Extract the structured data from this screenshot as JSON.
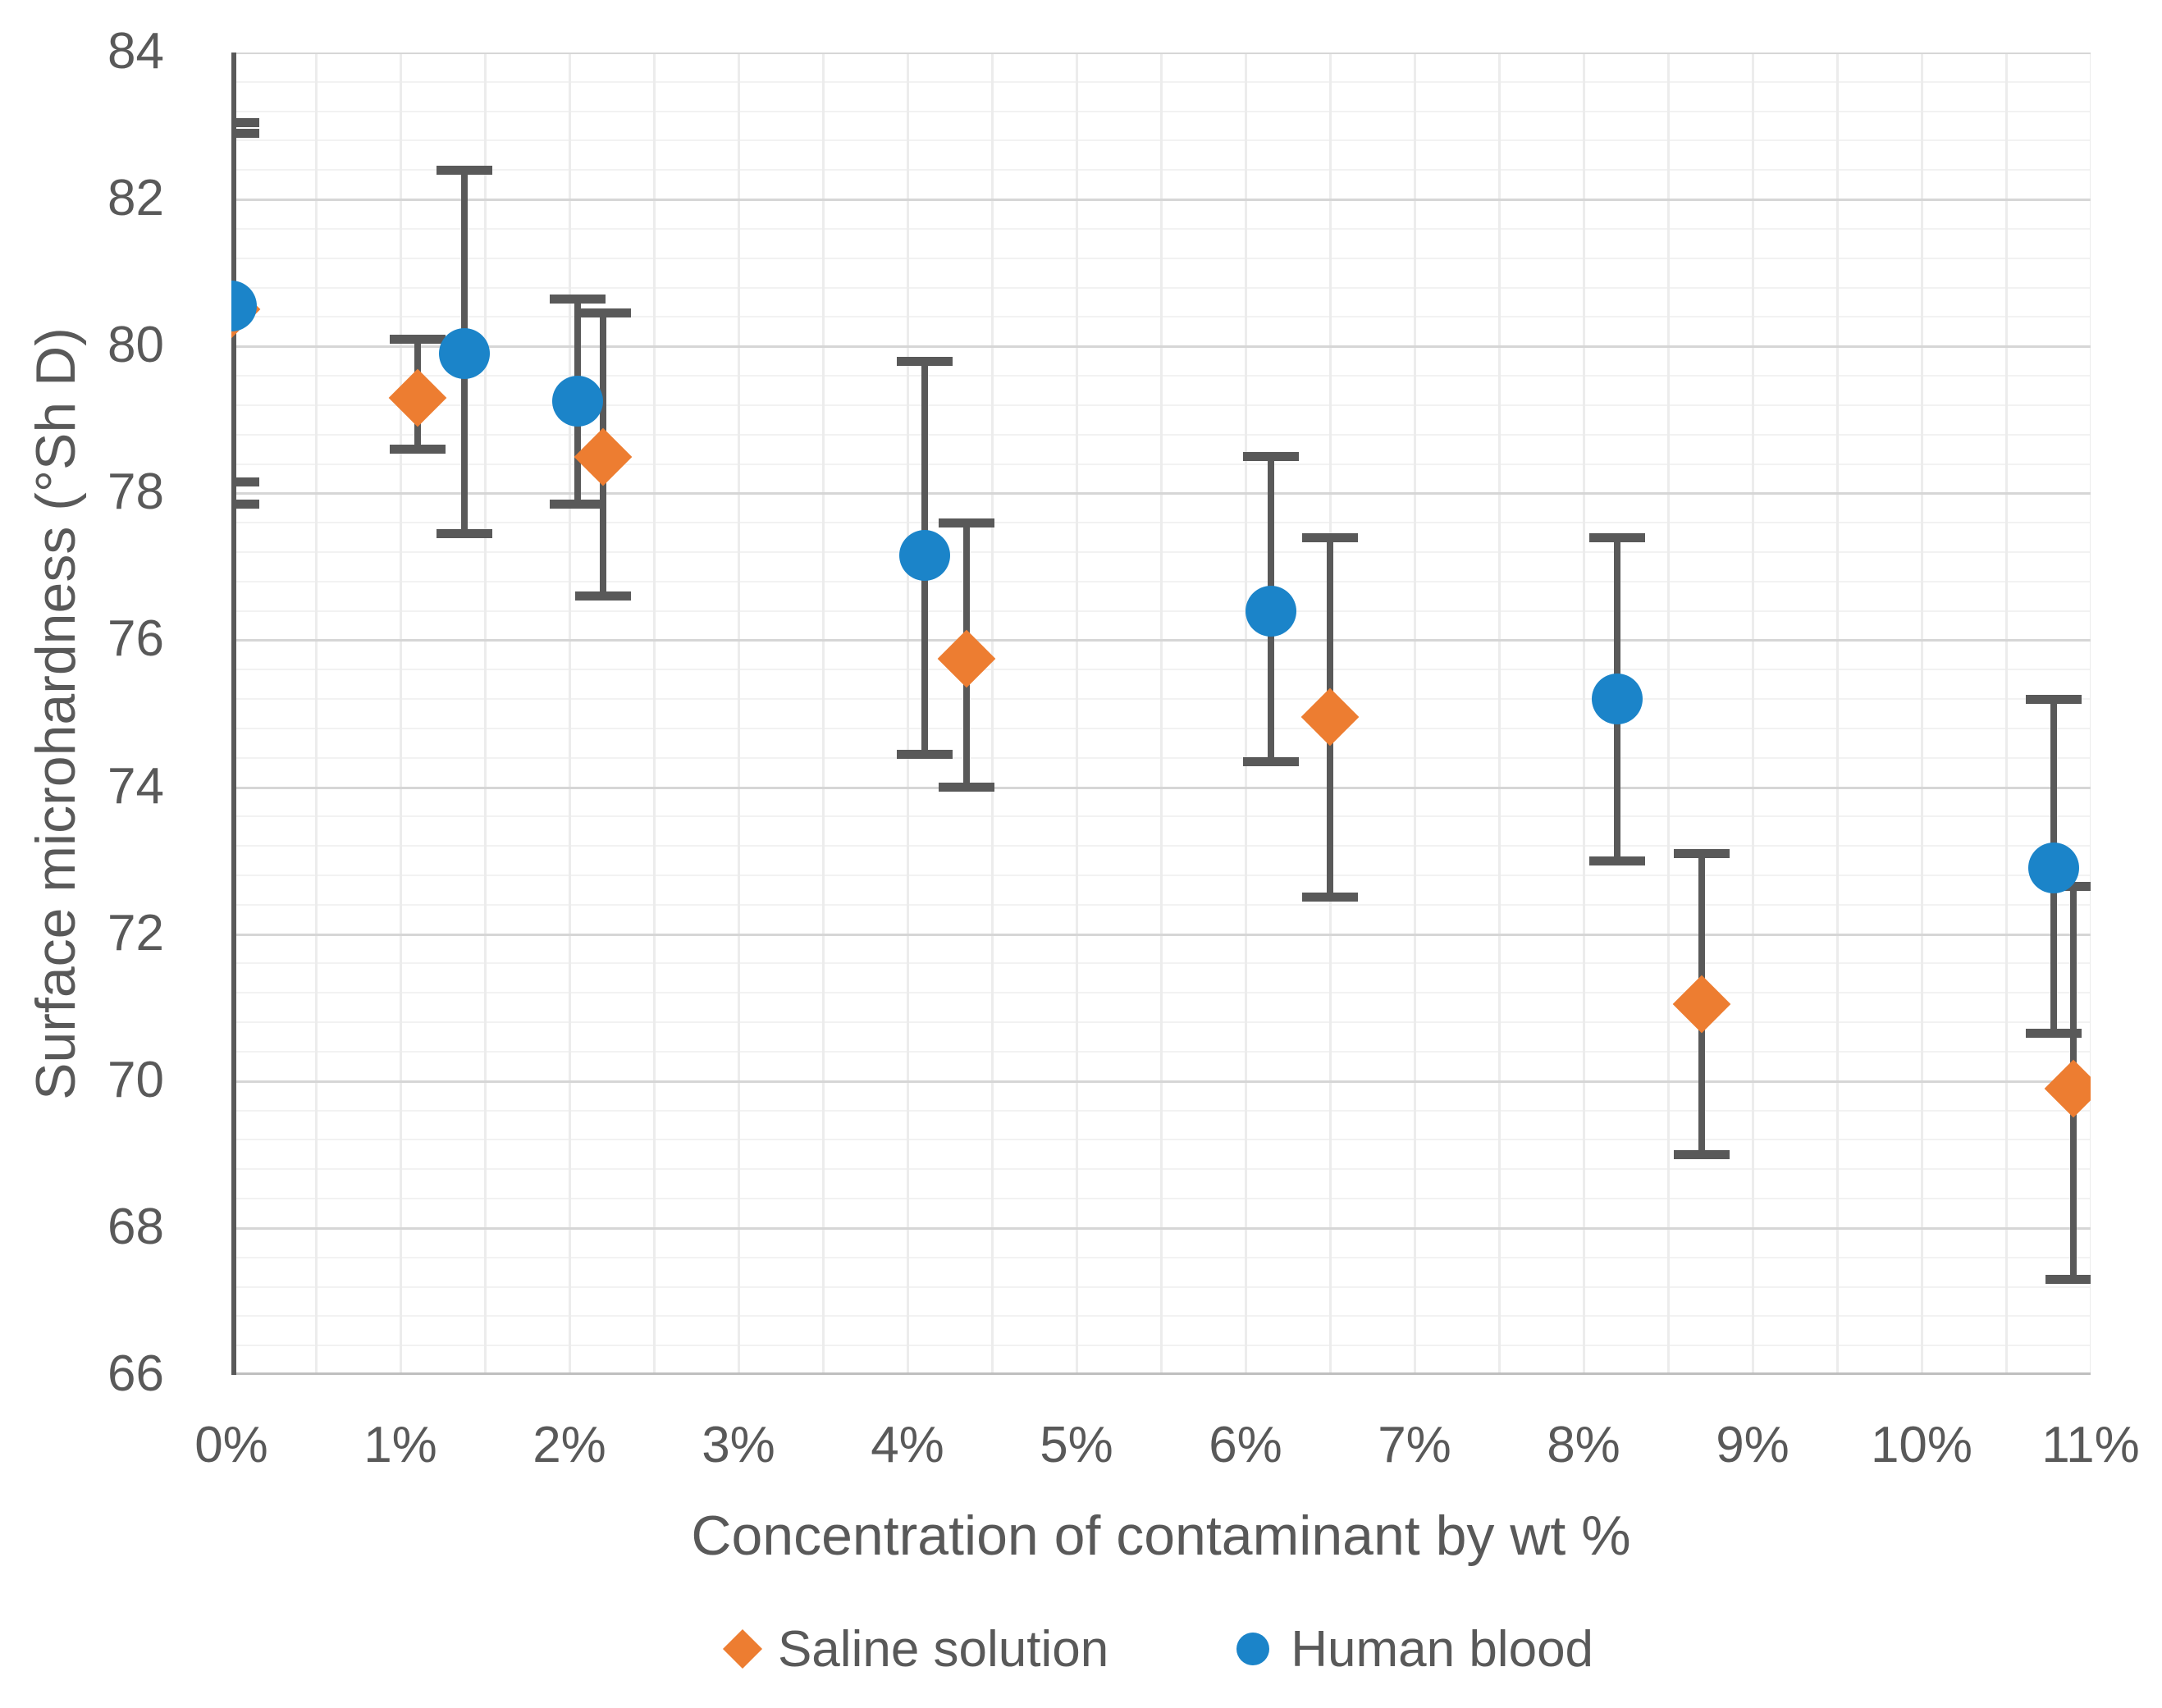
{
  "chart_data": {
    "type": "scatter",
    "title": "",
    "xlabel": "Concentration of contaminant by wt %",
    "ylabel": "Surface microhardness (°Sh D)",
    "xlim": [
      0,
      11
    ],
    "ylim": [
      66,
      84
    ],
    "x_tick_values": [
      0,
      1,
      2,
      3,
      4,
      5,
      6,
      7,
      8,
      9,
      10,
      11
    ],
    "x_tick_labels": [
      "0%",
      "1%",
      "2%",
      "3%",
      "4%",
      "5%",
      "6%",
      "7%",
      "8%",
      "9%",
      "10%",
      "11%"
    ],
    "y_tick_values": [
      66,
      68,
      70,
      72,
      74,
      76,
      78,
      80,
      82,
      84
    ],
    "y_major_step": 2,
    "y_minor_step": 0.4,
    "x_minor_step": 0.5,
    "grid": true,
    "legend_position": "bottom",
    "error_bar_color": "#595959",
    "major_grid_color": "#d6d6d6",
    "minor_grid_color": "#f2f2f2",
    "vertical_grid_color": "#ececec",
    "axis_text_color": "#595959",
    "series": [
      {
        "name": "Saline solution",
        "marker": "diamond",
        "color": "#ED7D31",
        "points": [
          {
            "x": 0.0,
            "y": 80.5,
            "err_lo": 78.15,
            "err_hi": 82.9
          },
          {
            "x": 1.1,
            "y": 79.3,
            "err_lo": 78.6,
            "err_hi": 80.1
          },
          {
            "x": 2.2,
            "y": 78.5,
            "err_lo": 76.6,
            "err_hi": 80.45
          },
          {
            "x": 4.35,
            "y": 75.75,
            "err_lo": 74.0,
            "err_hi": 77.6
          },
          {
            "x": 6.5,
            "y": 74.95,
            "err_lo": 72.5,
            "err_hi": 77.4
          },
          {
            "x": 8.7,
            "y": 71.05,
            "err_lo": 69.0,
            "err_hi": 73.1
          },
          {
            "x": 10.9,
            "y": 69.9,
            "err_lo": 67.3,
            "err_hi": 72.65
          }
        ]
      },
      {
        "name": "Human blood",
        "marker": "circle",
        "color": "#1B84C9",
        "points": [
          {
            "x": 0.0,
            "y": 80.55,
            "err_lo": 77.85,
            "err_hi": 83.05
          },
          {
            "x": 1.38,
            "y": 79.9,
            "err_lo": 77.45,
            "err_hi": 82.4
          },
          {
            "x": 2.05,
            "y": 79.25,
            "err_lo": 77.85,
            "err_hi": 80.65
          },
          {
            "x": 4.1,
            "y": 77.15,
            "err_lo": 74.45,
            "err_hi": 79.8
          },
          {
            "x": 6.15,
            "y": 76.4,
            "err_lo": 74.35,
            "err_hi": 78.5
          },
          {
            "x": 8.2,
            "y": 75.2,
            "err_lo": 73.0,
            "err_hi": 77.4
          },
          {
            "x": 10.78,
            "y": 72.9,
            "err_lo": 70.65,
            "err_hi": 75.2
          }
        ]
      }
    ]
  }
}
